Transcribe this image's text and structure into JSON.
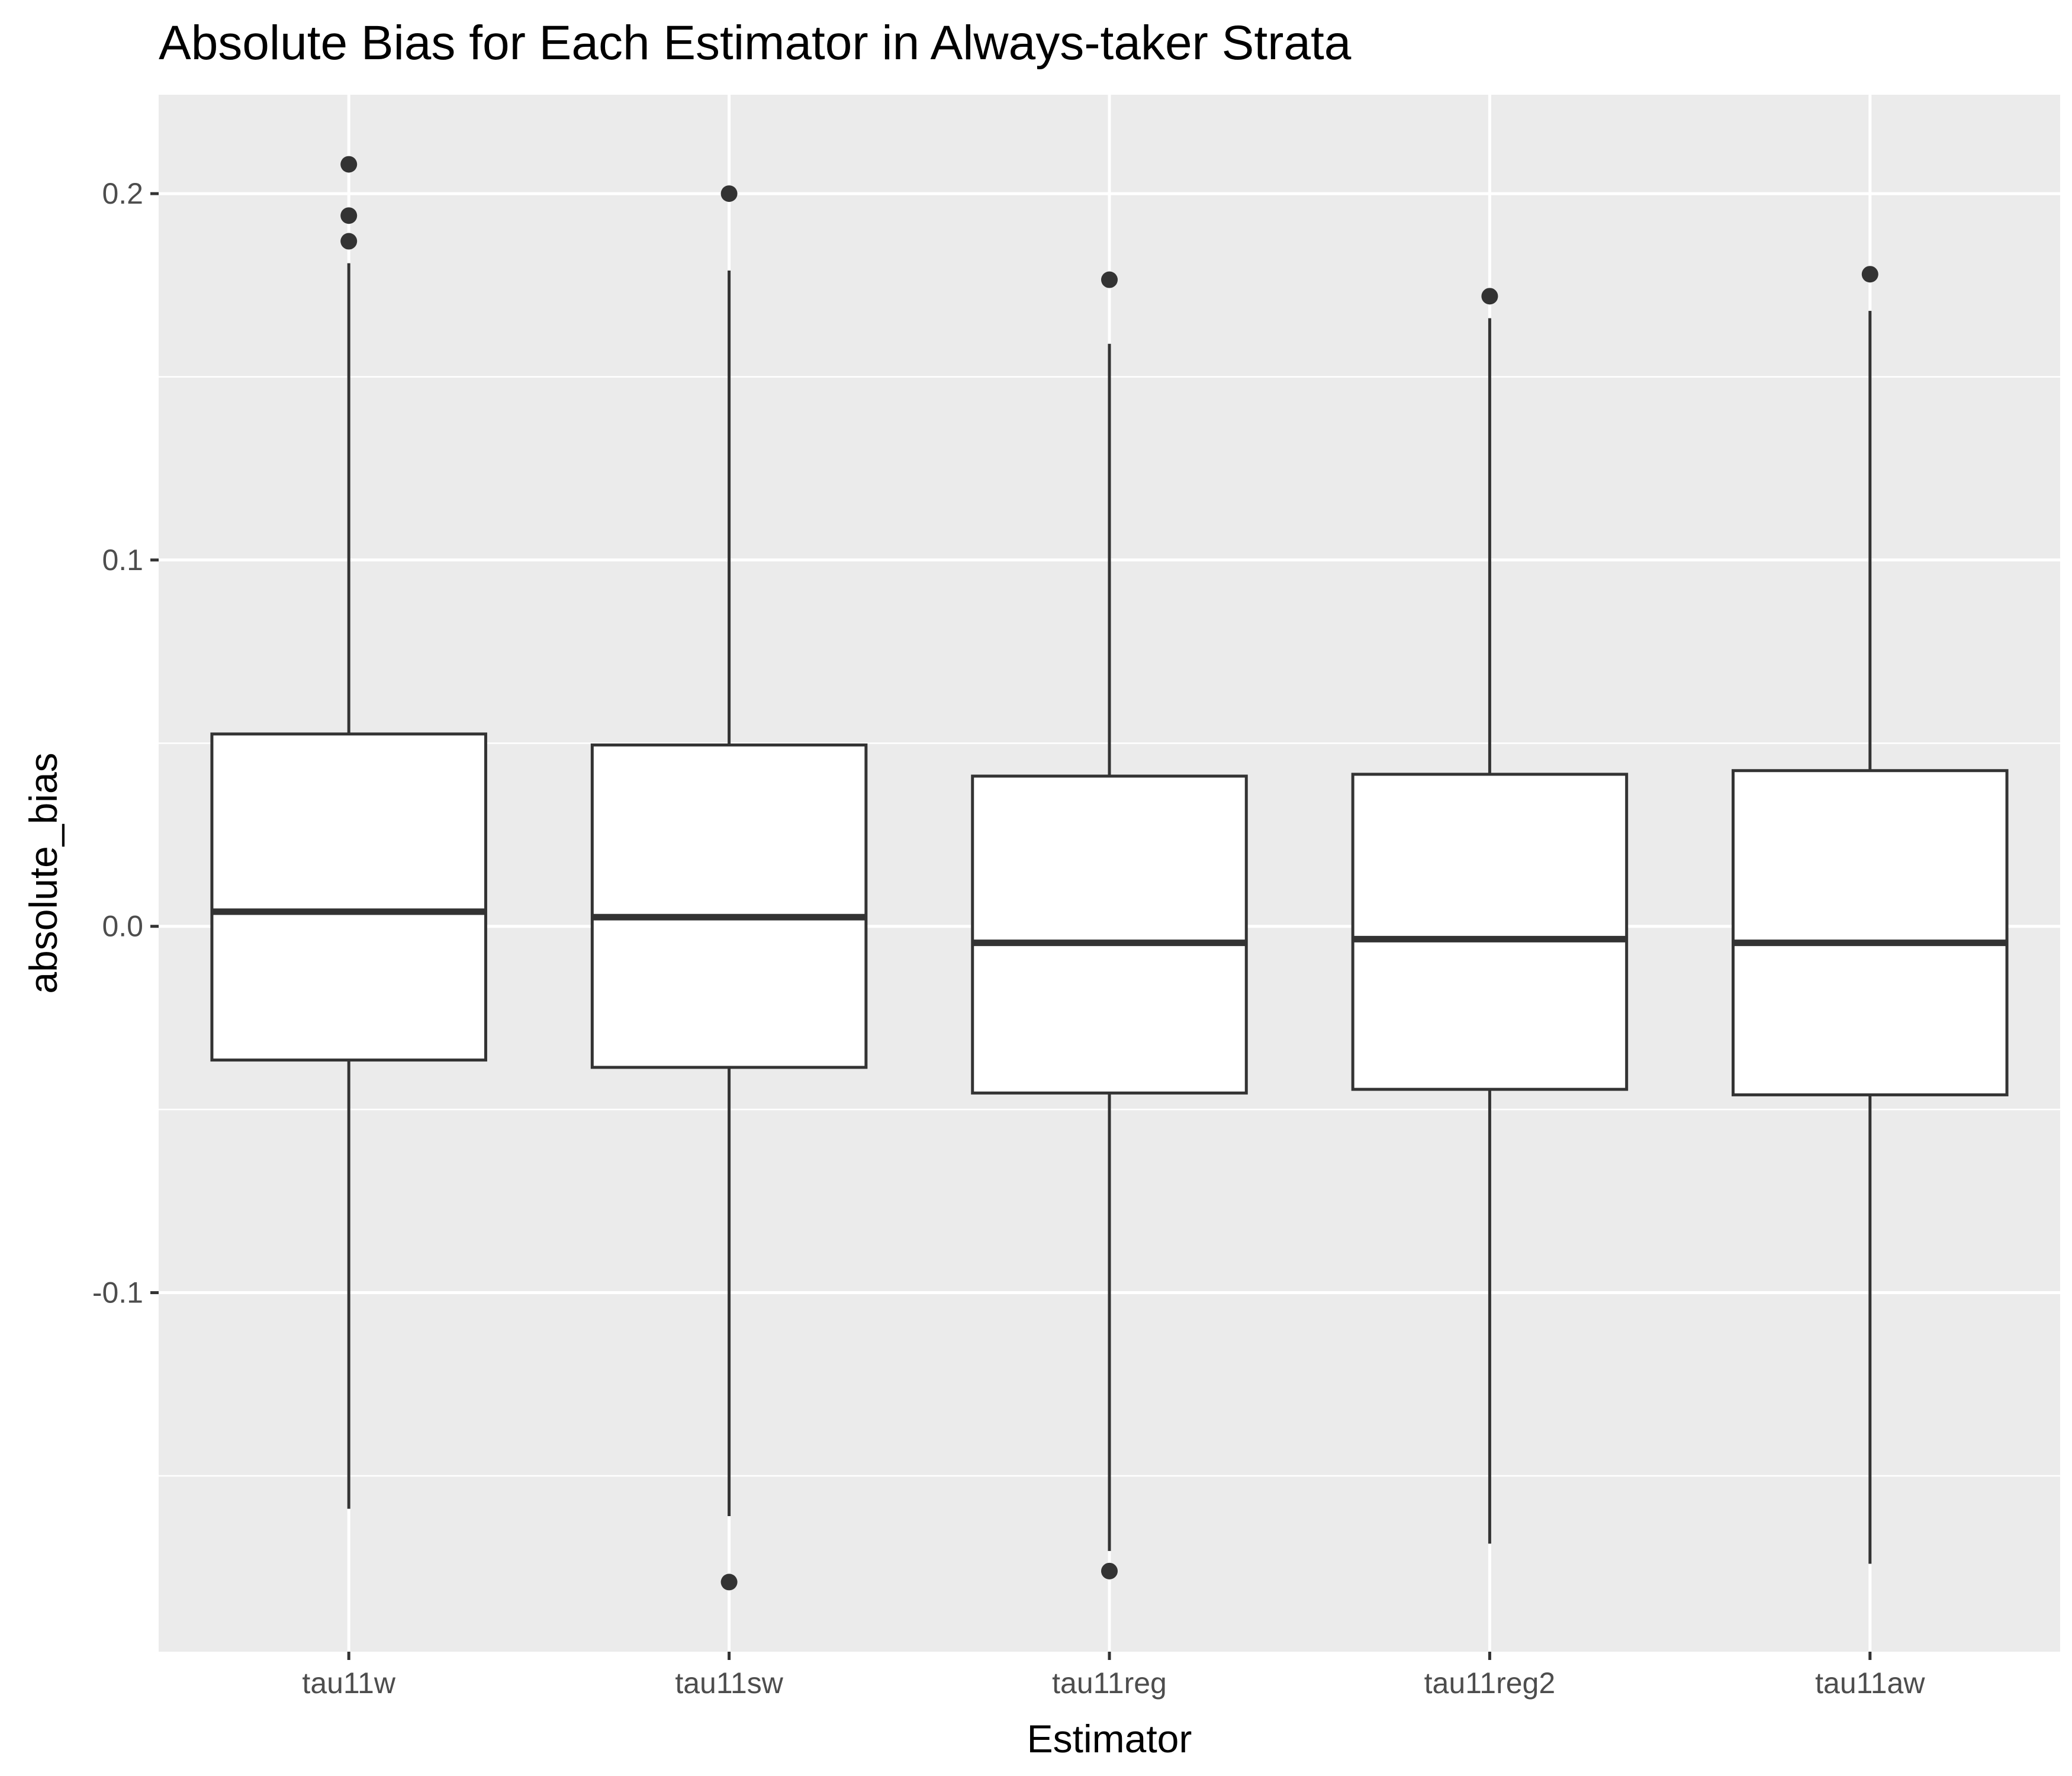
{
  "chart_data": {
    "type": "boxplot",
    "title": "Absolute Bias for Each Estimator in Always-taker Strata",
    "xlabel": "Estimator",
    "ylabel": "absolute_bias",
    "categories": [
      "tau11w",
      "tau11sw",
      "tau11reg",
      "tau11reg2",
      "tau11aw"
    ],
    "ylim": [
      -0.198,
      0.227
    ],
    "y_ticks": [
      {
        "value": 0.2,
        "label": "0.2"
      },
      {
        "value": 0.1,
        "label": "0.1"
      },
      {
        "value": 0.0,
        "label": "0.0"
      },
      {
        "value": -0.1,
        "label": "-0.1"
      }
    ],
    "y_minor_ticks": [
      0.15,
      0.05,
      -0.05,
      -0.15
    ],
    "grid": true,
    "boxes": [
      {
        "category": "tau11w",
        "whisker_low": -0.159,
        "q1": -0.0365,
        "median": 0.004,
        "q3": 0.0525,
        "whisker_high": 0.181,
        "outliers": [
          0.208,
          0.194,
          0.187
        ]
      },
      {
        "category": "tau11sw",
        "whisker_low": -0.161,
        "q1": -0.0385,
        "median": 0.0025,
        "q3": 0.0495,
        "whisker_high": 0.179,
        "outliers": [
          0.2,
          -0.179
        ]
      },
      {
        "category": "tau11reg",
        "whisker_low": -0.1705,
        "q1": -0.0455,
        "median": -0.0045,
        "q3": 0.041,
        "whisker_high": 0.159,
        "outliers": [
          0.1765,
          -0.176
        ]
      },
      {
        "category": "tau11reg2",
        "whisker_low": -0.1685,
        "q1": -0.0445,
        "median": -0.0035,
        "q3": 0.0415,
        "whisker_high": 0.166,
        "outliers": [
          0.172
        ]
      },
      {
        "category": "tau11aw",
        "whisker_low": -0.174,
        "q1": -0.046,
        "median": -0.0045,
        "q3": 0.0425,
        "whisker_high": 0.168,
        "outliers": [
          0.178
        ]
      }
    ]
  }
}
